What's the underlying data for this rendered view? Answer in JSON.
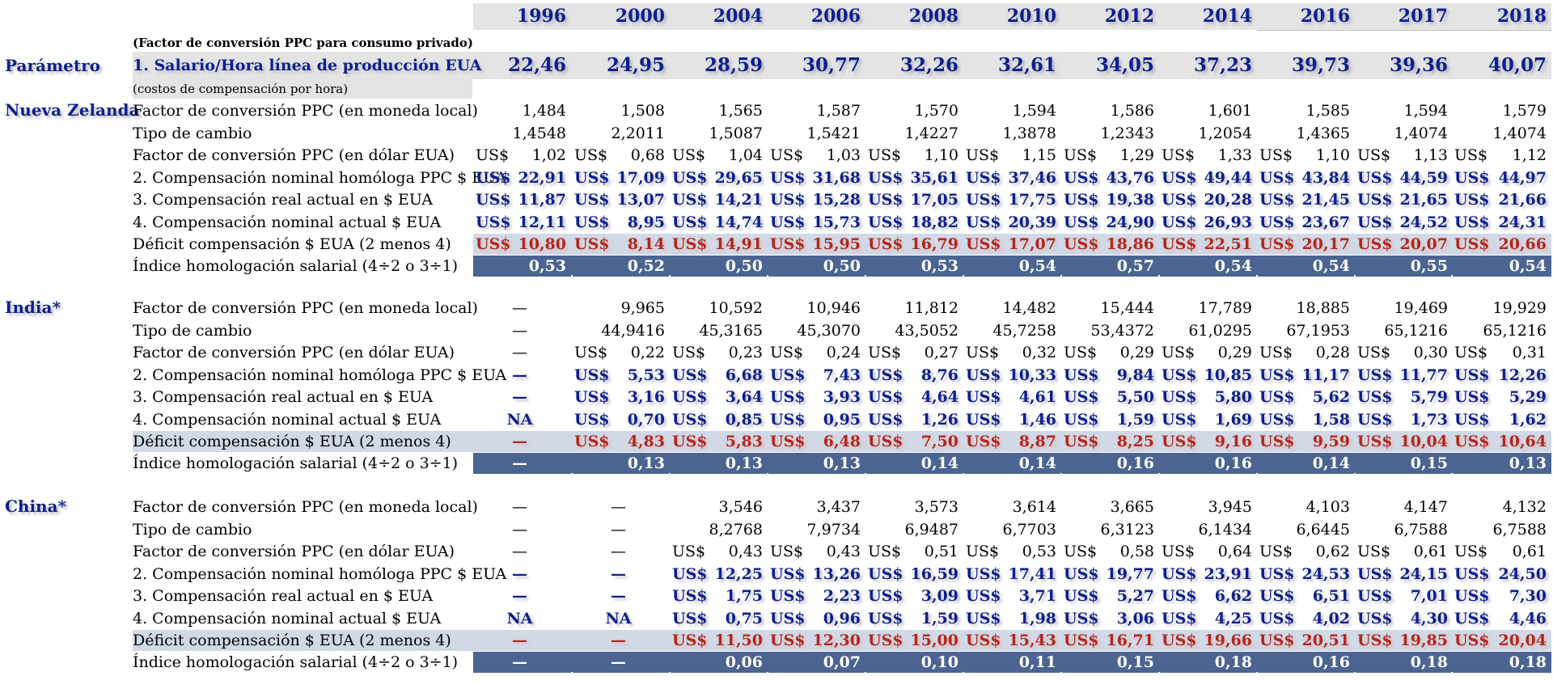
{
  "years": [
    "1996",
    "2000",
    "2004",
    "2006",
    "2008",
    "2010",
    "2012",
    "2014",
    "2016",
    "2017",
    "2018"
  ],
  "header": {
    "note_top": "(Factor de conversión PPC para consumo privado)",
    "param_label": "Parámetro",
    "param_row_label": "1. Salario/Hora línea de producción EUA",
    "note_bottom": "(costos de compensación por hora)",
    "param_values": [
      "22,46",
      "24,95",
      "28,59",
      "30,77",
      "32,26",
      "32,61",
      "34,05",
      "37,23",
      "39,73",
      "39,36",
      "40,07"
    ]
  },
  "currency": "US$",
  "row_labels": {
    "ppc_local": "Factor de conversión PPC (en moneda local)",
    "exchange": "Tipo de cambio",
    "ppc_usd": "Factor de conversión PPC (en dólar EUA)",
    "comp_ppc": "2. Compensación nominal homóloga PPC $ EUA",
    "comp_real": "3. Compensación real actual  en $ EUA",
    "comp_nominal": "4. Compensación nominal actual $ EUA",
    "deficit": "Déficit compensación $ EUA (2 menos 4)",
    "index": "Índice homologación salarial (4÷2 o 3÷1)"
  },
  "countries": [
    {
      "name": "Nueva Zelanda",
      "ppc_local": [
        "1,484",
        "1,508",
        "1,565",
        "1,587",
        "1,570",
        "1,594",
        "1,586",
        "1,601",
        "1,585",
        "1,594",
        "1,579"
      ],
      "exchange": [
        "1,4548",
        "2,2011",
        "1,5087",
        "1,5421",
        "1,4227",
        "1,3878",
        "1,2343",
        "1,2054",
        "1,4365",
        "1,4074",
        "1,4074"
      ],
      "ppc_usd": [
        "1,02",
        "0,68",
        "1,04",
        "1,03",
        "1,10",
        "1,15",
        "1,29",
        "1,33",
        "1,10",
        "1,13",
        "1,12"
      ],
      "comp_ppc": [
        "22,91",
        "17,09",
        "29,65",
        "31,68",
        "35,61",
        "37,46",
        "43,76",
        "49,44",
        "43,84",
        "44,59",
        "44,97"
      ],
      "comp_real": [
        "11,87",
        "13,07",
        "14,21",
        "15,28",
        "17,05",
        "17,75",
        "19,38",
        "20,28",
        "21,45",
        "21,65",
        "21,66"
      ],
      "comp_nominal": [
        "12,11",
        "8,95",
        "14,74",
        "15,73",
        "18,82",
        "20,39",
        "24,90",
        "26,93",
        "23,67",
        "24,52",
        "24,31"
      ],
      "deficit": [
        "10,80",
        "8,14",
        "14,91",
        "15,95",
        "16,79",
        "17,07",
        "18,86",
        "22,51",
        "20,17",
        "20,07",
        "20,66"
      ],
      "index": [
        "0,53",
        "0,52",
        "0,50",
        "0,50",
        "0,53",
        "0,54",
        "0,57",
        "0,54",
        "0,54",
        "0,55",
        "0,54"
      ]
    },
    {
      "name": "India*",
      "ppc_local": [
        "—",
        "9,965",
        "10,592",
        "10,946",
        "11,812",
        "14,482",
        "15,444",
        "17,789",
        "18,885",
        "19,469",
        "19,929"
      ],
      "exchange": [
        "—",
        "44,9416",
        "45,3165",
        "45,3070",
        "43,5052",
        "45,7258",
        "53,4372",
        "61,0295",
        "67,1953",
        "65,1216",
        "65,1216"
      ],
      "ppc_usd": [
        "—",
        "0,22",
        "0,23",
        "0,24",
        "0,27",
        "0,32",
        "0,29",
        "0,29",
        "0,28",
        "0,30",
        "0,31"
      ],
      "comp_ppc": [
        "—",
        "5,53",
        "6,68",
        "7,43",
        "8,76",
        "10,33",
        "9,84",
        "10,85",
        "11,17",
        "11,77",
        "12,26"
      ],
      "comp_real": [
        "—",
        "3,16",
        "3,64",
        "3,93",
        "4,64",
        "4,61",
        "5,50",
        "5,80",
        "5,62",
        "5,79",
        "5,29"
      ],
      "comp_nominal": [
        "NA",
        "0,70",
        "0,85",
        "0,95",
        "1,26",
        "1,46",
        "1,59",
        "1,69",
        "1,58",
        "1,73",
        "1,62"
      ],
      "deficit": [
        "—",
        "4,83",
        "5,83",
        "6,48",
        "7,50",
        "8,87",
        "8,25",
        "9,16",
        "9,59",
        "10,04",
        "10,64"
      ],
      "index": [
        "—",
        "0,13",
        "0,13",
        "0,13",
        "0,14",
        "0,14",
        "0,16",
        "0,16",
        "0,14",
        "0,15",
        "0,13"
      ]
    },
    {
      "name": "China*",
      "ppc_local": [
        "—",
        "—",
        "3,546",
        "3,437",
        "3,573",
        "3,614",
        "3,665",
        "3,945",
        "4,103",
        "4,147",
        "4,132"
      ],
      "exchange": [
        "—",
        "—",
        "8,2768",
        "7,9734",
        "6,9487",
        "6,7703",
        "6,3123",
        "6,1434",
        "6,6445",
        "6,7588",
        "6,7588"
      ],
      "ppc_usd": [
        "—",
        "—",
        "0,43",
        "0,43",
        "0,51",
        "0,53",
        "0,58",
        "0,64",
        "0,62",
        "0,61",
        "0,61"
      ],
      "comp_ppc": [
        "—",
        "—",
        "12,25",
        "13,26",
        "16,59",
        "17,41",
        "19,77",
        "23,91",
        "24,53",
        "24,15",
        "24,50"
      ],
      "comp_real": [
        "—",
        "—",
        "1,75",
        "2,23",
        "3,09",
        "3,71",
        "5,27",
        "6,62",
        "6,51",
        "7,01",
        "7,30"
      ],
      "comp_nominal": [
        "NA",
        "NA",
        "0,75",
        "0,96",
        "1,59",
        "1,98",
        "3,06",
        "4,25",
        "4,02",
        "4,30",
        "4,46"
      ],
      "deficit": [
        "—",
        "—",
        "11,50",
        "12,30",
        "15,00",
        "15,43",
        "16,71",
        "19,66",
        "20,51",
        "19,85",
        "20,04"
      ],
      "index": [
        "—",
        "—",
        "0,06",
        "0,07",
        "0,10",
        "0,11",
        "0,15",
        "0,18",
        "0,16",
        "0,18",
        "0,18"
      ]
    }
  ]
}
